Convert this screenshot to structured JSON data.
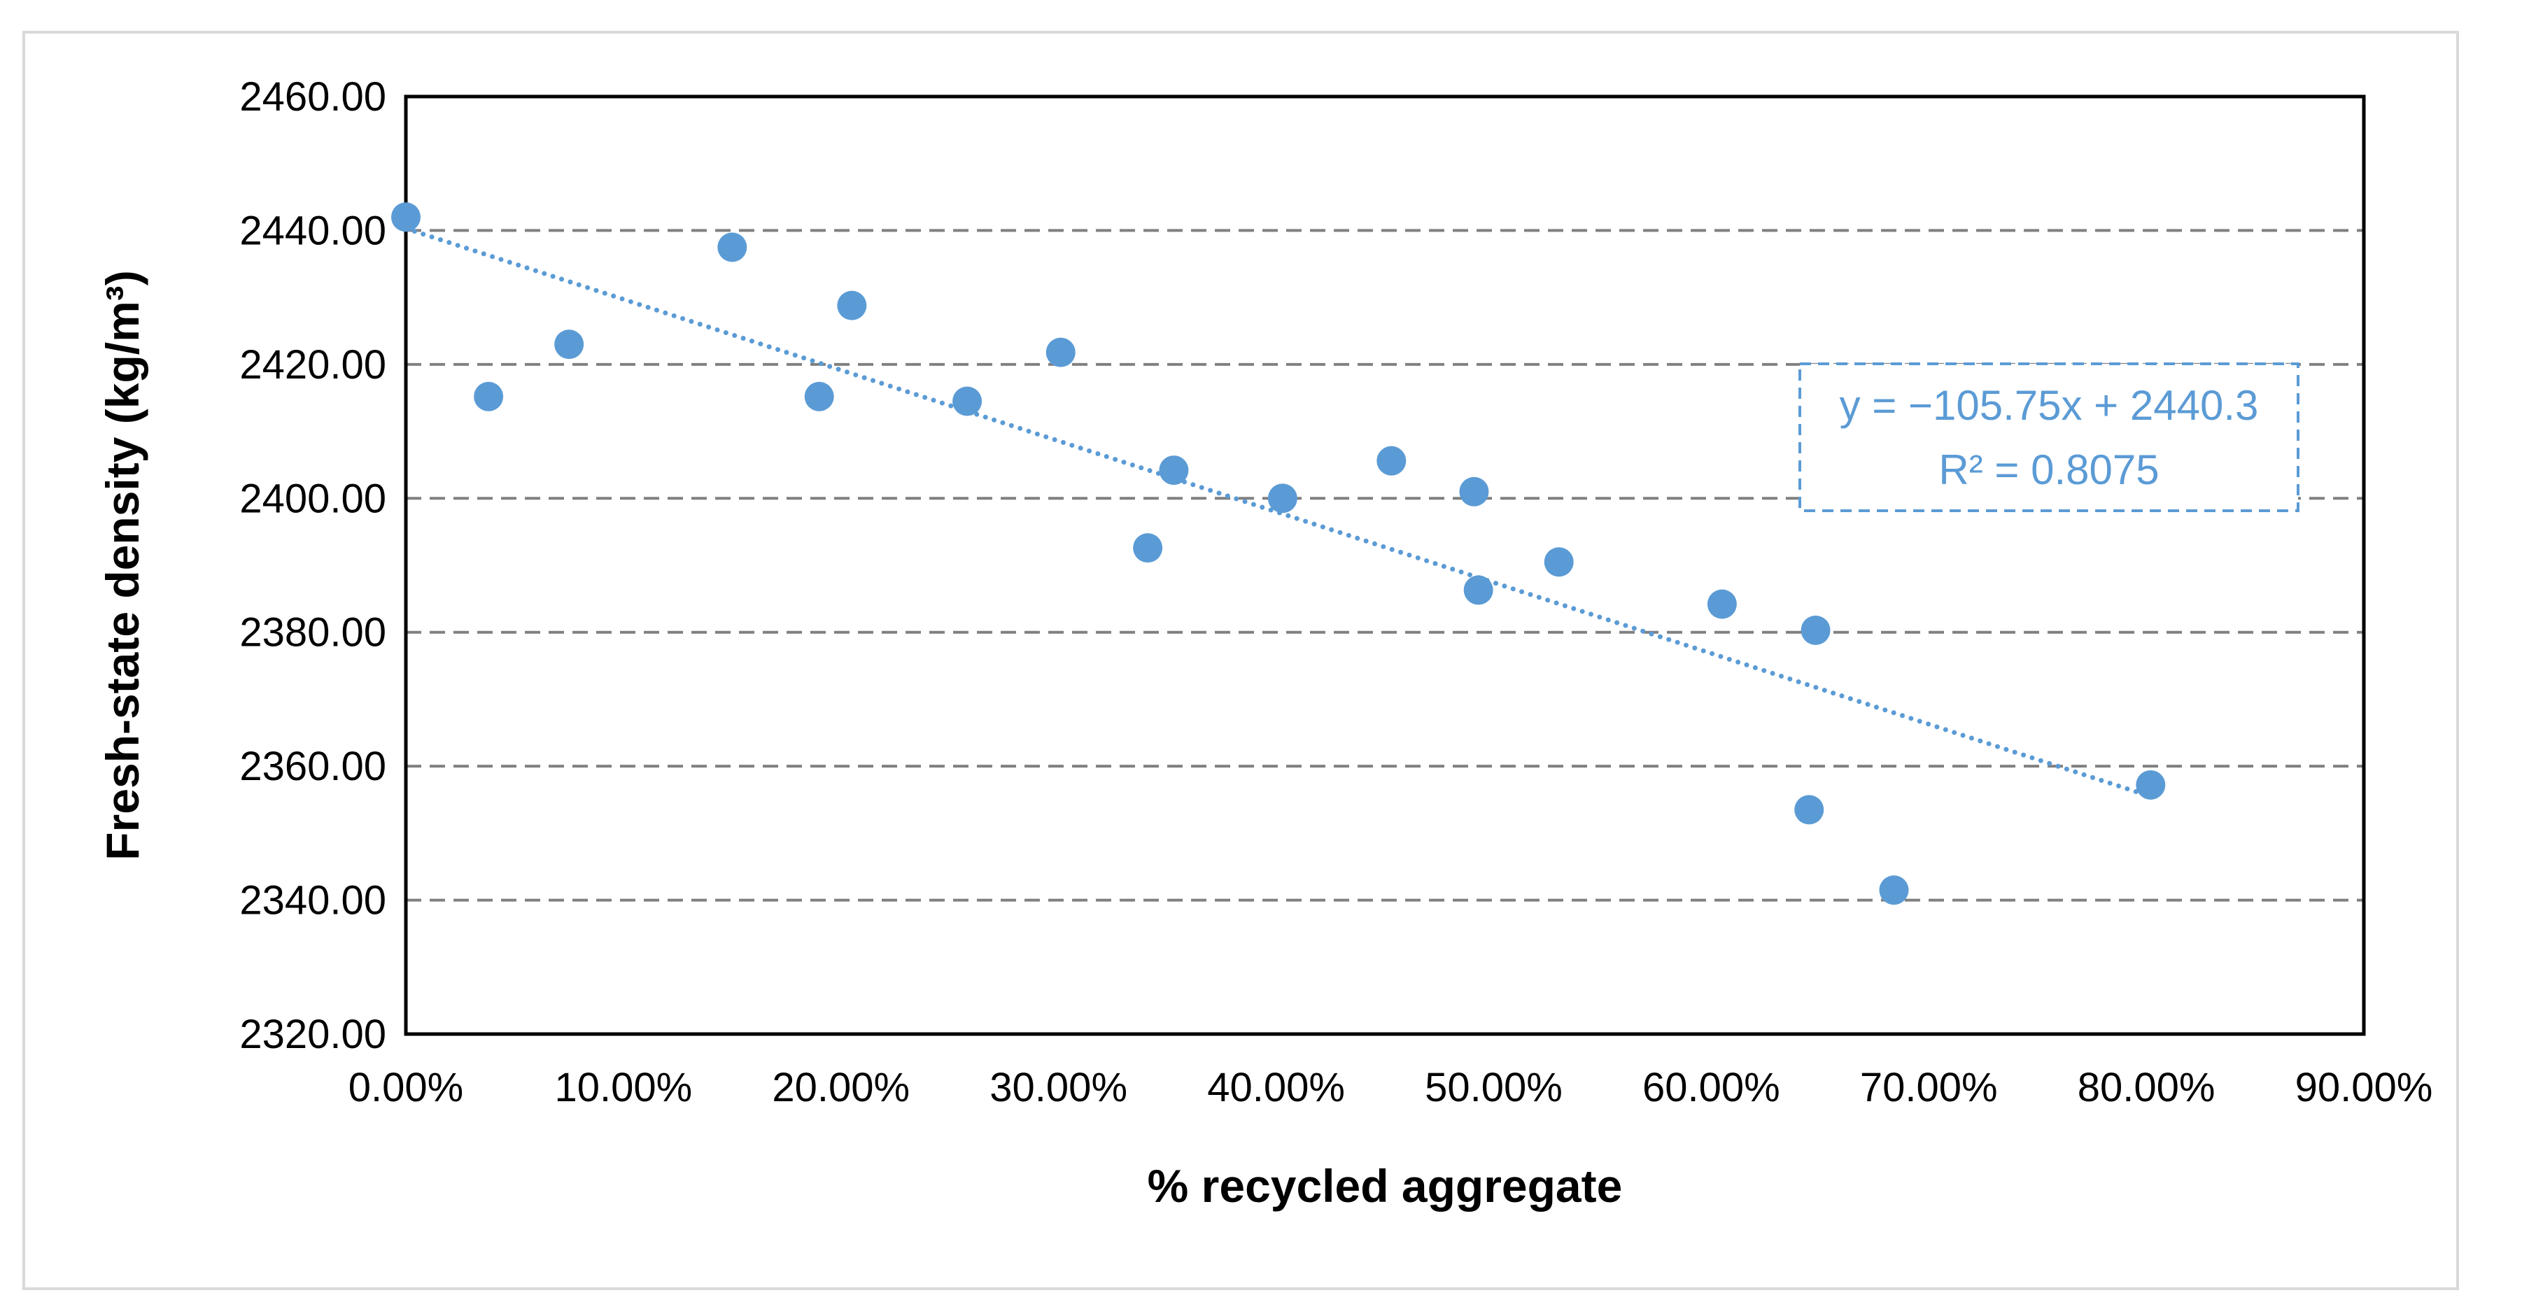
{
  "chart_data": {
    "type": "scatter",
    "title": "",
    "xlabel": "% recycled aggregate",
    "ylabel": "Fresh-state density (kg/m³)",
    "xlim": [
      0,
      0.9
    ],
    "ylim": [
      2320,
      2460
    ],
    "x_ticks": [
      0,
      0.1,
      0.2,
      0.3,
      0.4,
      0.5,
      0.6,
      0.7,
      0.8,
      0.9
    ],
    "x_tick_labels": [
      "0.00%",
      "10.00%",
      "20.00%",
      "30.00%",
      "40.00%",
      "50.00%",
      "60.00%",
      "70.00%",
      "80.00%",
      "90.00%"
    ],
    "y_ticks": [
      2320,
      2340,
      2360,
      2380,
      2400,
      2420,
      2440,
      2460
    ],
    "y_tick_labels": [
      "2320.00",
      "2340.00",
      "2360.00",
      "2380.00",
      "2400.00",
      "2420.00",
      "2440.00",
      "2460.00"
    ],
    "grid": "horizontal dashed",
    "series": [
      {
        "name": "Fresh-state density",
        "color": "#5B9BD5",
        "points": [
          {
            "x": 0.0,
            "y": 2442.0
          },
          {
            "x": 0.038,
            "y": 2415.2
          },
          {
            "x": 0.075,
            "y": 2423.0
          },
          {
            "x": 0.15,
            "y": 2437.5
          },
          {
            "x": 0.19,
            "y": 2415.2
          },
          {
            "x": 0.205,
            "y": 2428.8
          },
          {
            "x": 0.258,
            "y": 2414.5
          },
          {
            "x": 0.301,
            "y": 2421.8
          },
          {
            "x": 0.341,
            "y": 2392.6
          },
          {
            "x": 0.353,
            "y": 2404.2
          },
          {
            "x": 0.403,
            "y": 2400.0
          },
          {
            "x": 0.453,
            "y": 2405.6
          },
          {
            "x": 0.491,
            "y": 2401.0
          },
          {
            "x": 0.493,
            "y": 2386.3
          },
          {
            "x": 0.53,
            "y": 2390.5
          },
          {
            "x": 0.605,
            "y": 2384.2
          },
          {
            "x": 0.645,
            "y": 2353.5
          },
          {
            "x": 0.648,
            "y": 2380.3
          },
          {
            "x": 0.684,
            "y": 2341.5
          },
          {
            "x": 0.802,
            "y": 2357.2
          }
        ]
      }
    ],
    "trendline": {
      "type": "linear",
      "slope": -105.75,
      "intercept": 2440.3,
      "x_range": [
        0,
        0.802
      ],
      "color": "#5B9BD5",
      "equation_label": "y = −105.75x + 2440.3",
      "r2_label": "R² = 0.8075",
      "label_position": "upper-right"
    }
  }
}
